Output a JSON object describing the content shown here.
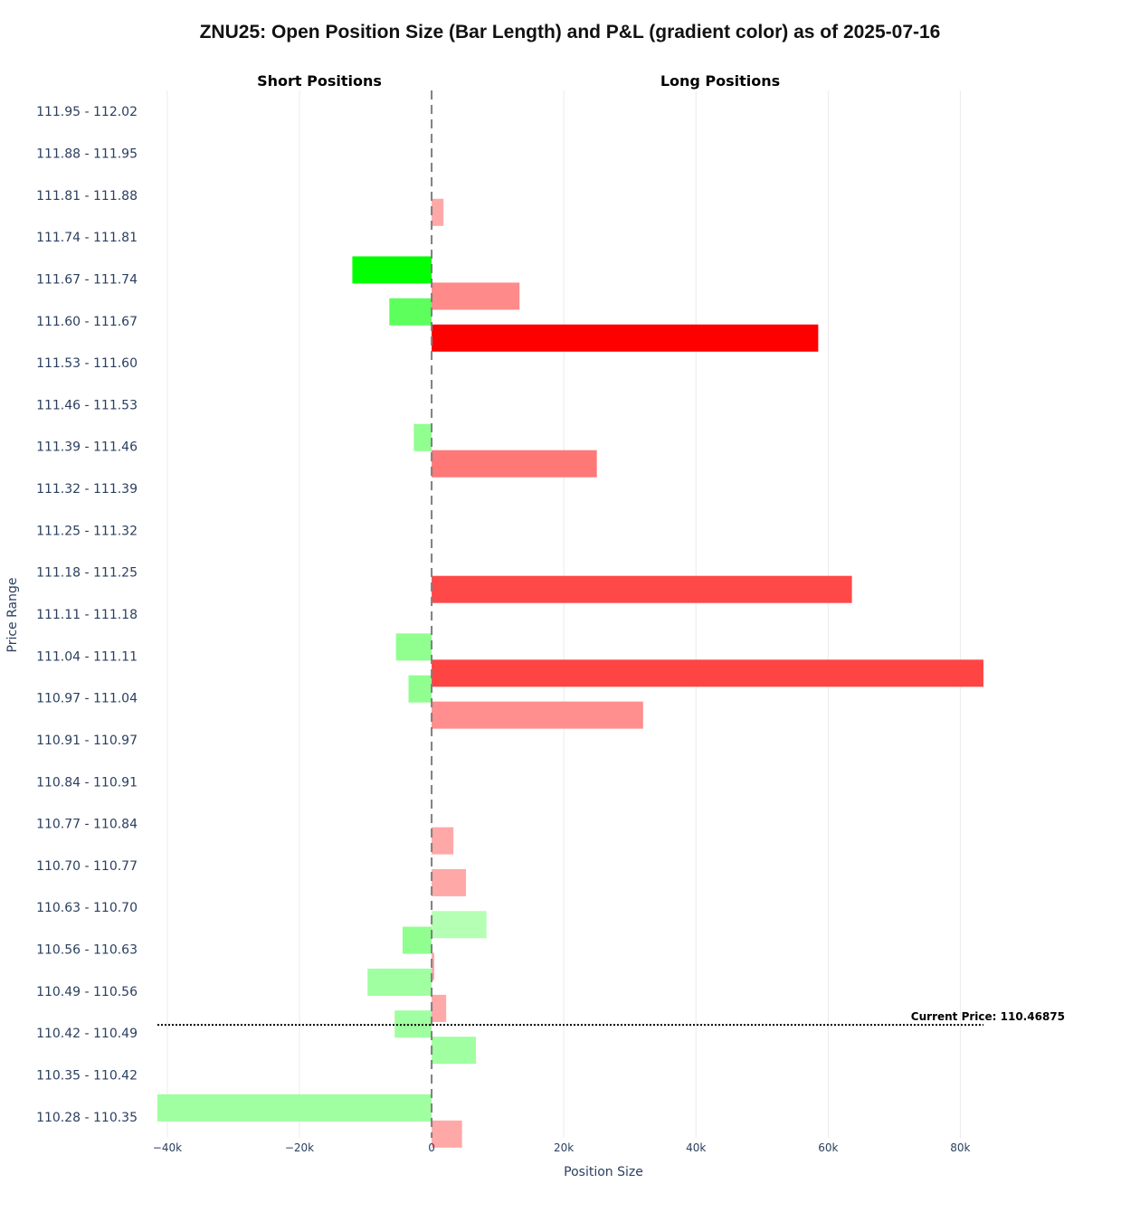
{
  "chart_data": {
    "type": "bar",
    "orientation": "horizontal",
    "barmode": "overlay",
    "title": "ZNU25: Open Position Size (Bar Length) and P&L (gradient color) as of 2025-07-16",
    "xlabel": "Position Size",
    "ylabel": "Price Range",
    "section_labels": {
      "short": "Short Positions",
      "long": "Long Positions"
    },
    "xlim": [
      -43000,
      93500
    ],
    "x_ticks": [
      {
        "value": -40000,
        "label": "−40k"
      },
      {
        "value": -20000,
        "label": "−20k"
      },
      {
        "value": 0,
        "label": "0"
      },
      {
        "value": 20000,
        "label": "20k"
      },
      {
        "value": 40000,
        "label": "40k"
      },
      {
        "value": 60000,
        "label": "60k"
      },
      {
        "value": 80000,
        "label": "80k"
      }
    ],
    "grid": true,
    "categories": [
      "111.95 - 112.02",
      "111.88 - 111.95",
      "111.81 - 111.88",
      "111.74 - 111.81",
      "111.67 - 111.74",
      "111.60 - 111.67",
      "111.53 - 111.60",
      "111.46 - 111.53",
      "111.39 - 111.46",
      "111.32 - 111.39",
      "111.25 - 111.32",
      "111.18 - 111.25",
      "111.11 - 111.18",
      "111.04 - 111.11",
      "110.97 - 111.04",
      "110.91 - 110.97",
      "110.84 - 110.91",
      "110.77 - 110.84",
      "110.70 - 110.77",
      "110.63 - 110.70",
      "110.56 - 110.63",
      "110.49 - 110.56",
      "110.42 - 110.49",
      "110.35 - 110.42",
      "110.28 - 110.35"
    ],
    "series": [
      {
        "side": "short",
        "values": [
          0,
          0,
          0,
          0,
          -12000,
          -6400,
          0,
          0,
          -2700,
          0,
          0,
          0,
          0,
          -5400,
          -3500,
          0,
          0,
          0,
          0,
          0,
          -4400,
          -9700,
          -5600,
          0,
          -41500
        ],
        "colors": [
          "",
          "",
          "",
          "",
          "#00ff00",
          "#5cff5c",
          "",
          "",
          "#90ff90",
          "",
          "",
          "",
          "",
          "#90ff90",
          "#90ff90",
          "",
          "",
          "",
          "",
          "",
          "#90ff90",
          "#a0ffa0",
          "#a0ffa0",
          "",
          "#a0ffa0"
        ]
      },
      {
        "side": "long",
        "values": [
          0,
          0,
          1800,
          0,
          13300,
          58500,
          0,
          0,
          25000,
          0,
          0,
          63600,
          0,
          83500,
          32000,
          0,
          0,
          3300,
          5200,
          8300,
          400,
          2200,
          6700,
          0,
          4600
        ],
        "colors": [
          "",
          "",
          "#ffa8a8",
          "",
          "#ff8a8a",
          "#ff0000",
          "",
          "",
          "#ff7878",
          "",
          "",
          "#ff4848",
          "",
          "#ff4444",
          "#ff8e8e",
          "",
          "",
          "#ffa8a8",
          "#ffa8a8",
          "#b4ffb4",
          "#ffa8a8",
          "#ffa8a8",
          "#a0ffa0",
          "",
          "#ffa8a8"
        ]
      }
    ],
    "current_price": {
      "label": "Current Price: 110.46875",
      "value": 110.46875
    }
  }
}
